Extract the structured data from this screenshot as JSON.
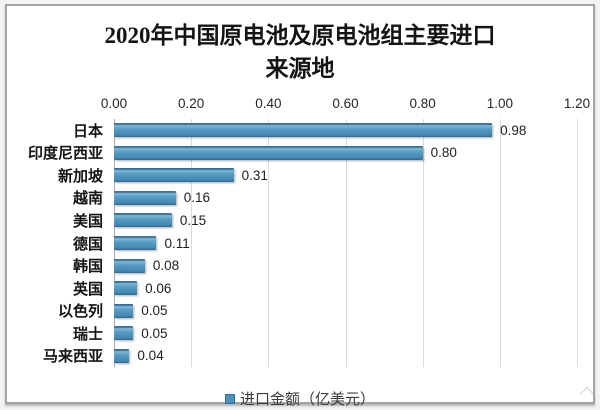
{
  "header": {
    "title_line1": "2020年中国原电池及原电池组主要进口",
    "title_line2": "来源地"
  },
  "chart_data": {
    "type": "bar",
    "orientation": "horizontal",
    "title": "2020年中国原电池及原电池组主要进口来源地",
    "categories": [
      "日本",
      "印度尼西亚",
      "新加坡",
      "越南",
      "美国",
      "德国",
      "韩国",
      "英国",
      "以色列",
      "瑞士",
      "马来西亚"
    ],
    "values": [
      0.98,
      0.8,
      0.31,
      0.16,
      0.15,
      0.11,
      0.08,
      0.06,
      0.05,
      0.05,
      0.04
    ],
    "value_labels": [
      "0.98",
      "0.80",
      "0.31",
      "0.16",
      "0.15",
      "0.11",
      "0.08",
      "0.06",
      "0.05",
      "0.05",
      "0.04"
    ],
    "x_tick_labels": [
      "0.00",
      "0.20",
      "0.40",
      "0.60",
      "0.80",
      "1.00",
      "1.20"
    ],
    "xlim": [
      0,
      1.2
    ],
    "xlabel": "",
    "ylabel": "",
    "grid": "vertical-gridlines-on",
    "legend": {
      "label": "进口金额（亿美元）",
      "position": "bottom-center"
    },
    "colors": {
      "bar": "#4d92ba",
      "bar_edge": "#346e98",
      "bar_highlight": "#84bad6",
      "gridline": "#dadada",
      "axis_line": "#ababab",
      "text": "#1e1e1e",
      "frame_border": "#a3a3a3"
    }
  }
}
